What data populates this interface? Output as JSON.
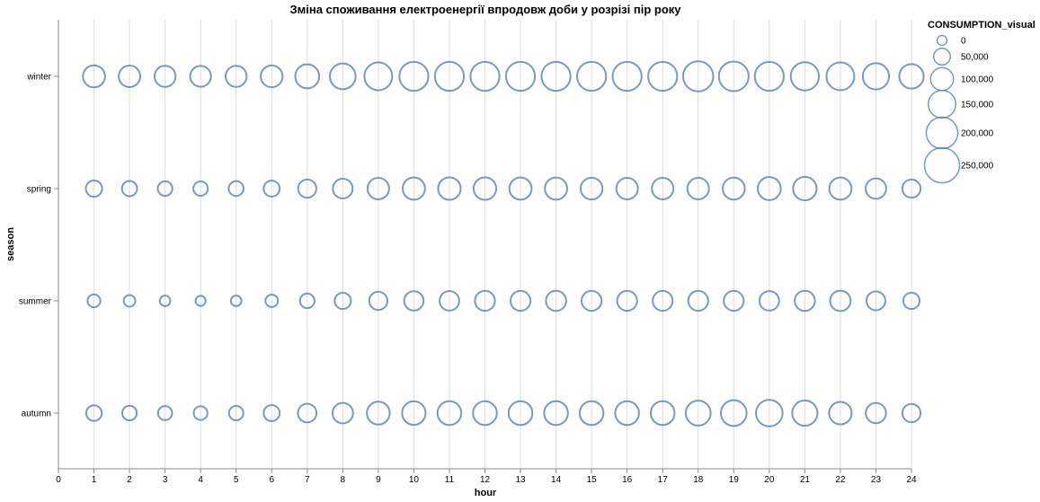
{
  "chart_data": {
    "type": "scatter",
    "title": "Зміна споживання електроенергії впродовж доби у розрізі пір року",
    "xlabel": "hour",
    "ylabel": "season",
    "xlim": [
      0,
      24
    ],
    "x_ticks": [
      0,
      1,
      2,
      3,
      4,
      5,
      6,
      7,
      8,
      9,
      10,
      11,
      12,
      13,
      14,
      15,
      16,
      17,
      18,
      19,
      20,
      21,
      22,
      23,
      24
    ],
    "categories": [
      "winter",
      "spring",
      "summer",
      "autumn"
    ],
    "size_field": "CONSUMPTION_visual",
    "size_domain": [
      0,
      250000
    ],
    "grid": "vertical",
    "mark_color": "#4c78a8",
    "legend": {
      "title": "CONSUMPTION_visual",
      "values": [
        0,
        50000,
        100000,
        150000,
        200000,
        250000
      ],
      "labels": [
        "0",
        "50,000",
        "100,000",
        "150,000",
        "200,000",
        "250,000"
      ],
      "placement": "right"
    },
    "series": [
      {
        "name": "winter",
        "hours": [
          1,
          2,
          3,
          4,
          5,
          6,
          7,
          8,
          9,
          10,
          11,
          12,
          13,
          14,
          15,
          16,
          17,
          18,
          19,
          20,
          21,
          22,
          23,
          24
        ],
        "values": [
          110000,
          105000,
          100000,
          98000,
          100000,
          108000,
          130000,
          150000,
          175000,
          190000,
          190000,
          190000,
          190000,
          190000,
          190000,
          190000,
          190000,
          205000,
          200000,
          190000,
          180000,
          175000,
          155000,
          135000
        ]
      },
      {
        "name": "spring",
        "hours": [
          1,
          2,
          3,
          4,
          5,
          6,
          7,
          8,
          9,
          10,
          11,
          12,
          13,
          14,
          15,
          16,
          17,
          18,
          19,
          20,
          21,
          22,
          23,
          24
        ],
        "values": [
          60000,
          52000,
          48000,
          47000,
          50000,
          58000,
          75000,
          88000,
          105000,
          112000,
          115000,
          115000,
          112000,
          112000,
          108000,
          105000,
          105000,
          105000,
          110000,
          120000,
          125000,
          112000,
          95000,
          75000
        ]
      },
      {
        "name": "summer",
        "hours": [
          1,
          2,
          3,
          4,
          5,
          6,
          7,
          8,
          9,
          10,
          11,
          12,
          13,
          14,
          15,
          16,
          17,
          18,
          19,
          20,
          21,
          22,
          23,
          24
        ],
        "values": [
          37000,
          30000,
          25000,
          23000,
          25000,
          35000,
          48000,
          60000,
          75000,
          85000,
          87000,
          90000,
          90000,
          92000,
          90000,
          90000,
          90000,
          90000,
          90000,
          87000,
          92000,
          95000,
          80000,
          60000
        ]
      },
      {
        "name": "autumn",
        "hours": [
          1,
          2,
          3,
          4,
          5,
          6,
          7,
          8,
          9,
          10,
          11,
          12,
          13,
          14,
          15,
          16,
          17,
          18,
          19,
          20,
          21,
          22,
          23,
          24
        ],
        "values": [
          55000,
          48000,
          45000,
          43000,
          47000,
          58000,
          78000,
          95000,
          118000,
          125000,
          128000,
          128000,
          128000,
          128000,
          128000,
          128000,
          128000,
          140000,
          150000,
          160000,
          145000,
          115000,
          92000,
          75000
        ]
      }
    ]
  }
}
